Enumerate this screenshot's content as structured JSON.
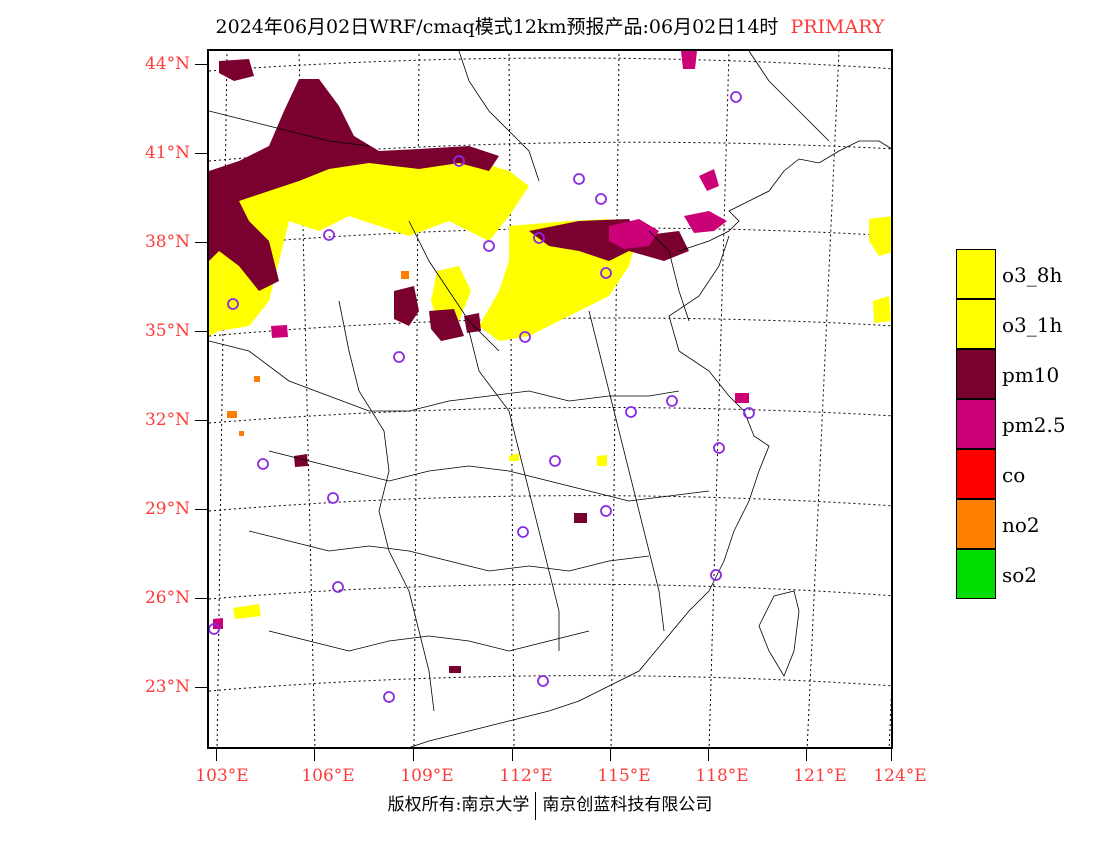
{
  "title": {
    "main": "2024年06月02日WRF/cmaq模式12km预报产品:06月02日14时",
    "tag": "PRIMARY"
  },
  "axes": {
    "lat_labels": [
      "44°N",
      "41°N",
      "38°N",
      "35°N",
      "32°N",
      "29°N",
      "26°N",
      "23°N"
    ],
    "lon_labels": [
      "103°E",
      "106°E",
      "109°E",
      "112°E",
      "115°E",
      "118°E",
      "121°E",
      "124°E"
    ]
  },
  "legend": {
    "items": [
      {
        "label": "o3_8h",
        "color": "#ffff00"
      },
      {
        "label": "o3_1h",
        "color": "#ffff00"
      },
      {
        "label": "pm10",
        "color": "#7a0030"
      },
      {
        "label": "pm2.5",
        "color": "#cc0077"
      },
      {
        "label": "co",
        "color": "#ff0000"
      },
      {
        "label": "no2",
        "color": "#ff8000"
      },
      {
        "label": "so2",
        "color": "#00dd00"
      }
    ]
  },
  "copyright": {
    "left": "版权所有:南京大学",
    "right": "南京创蓝科技有限公司"
  },
  "colors": {
    "label_red": "#ff3a3a",
    "station_circle": "#8a2be2"
  }
}
